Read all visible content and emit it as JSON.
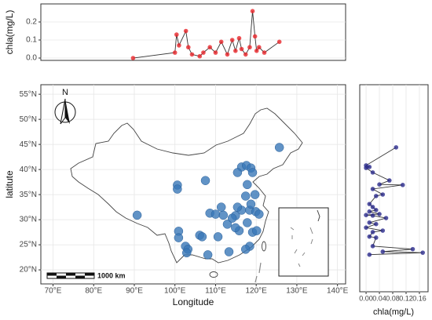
{
  "chart_data": [
    {
      "type": "line",
      "ylabel": "chla(mg/L)",
      "color": "#e8262a",
      "x": [
        89.7,
        100.0,
        100.4,
        101.0,
        102.7,
        103.3,
        104.2,
        106.1,
        107.0,
        108.6,
        110.0,
        111.4,
        112.9,
        114.1,
        114.9,
        115.8,
        116.4,
        117.4,
        118.4,
        119.1,
        119.7,
        120.1,
        120.7,
        122.0,
        125.7
      ],
      "values": [
        0.0,
        0.03,
        0.13,
        0.07,
        0.15,
        0.06,
        0.02,
        0.01,
        0.03,
        0.06,
        0.03,
        0.09,
        0.02,
        0.1,
        0.04,
        0.11,
        0.05,
        0.02,
        0.06,
        0.26,
        0.12,
        0.04,
        0.06,
        0.03,
        0.09
      ],
      "xlim": [
        67,
        142
      ],
      "ylim": [
        -0.013,
        0.3
      ],
      "yticks": [
        {
          "value": 0,
          "label": "0.0"
        },
        0.1,
        0.2
      ],
      "grid": true
    },
    {
      "type": "scatter",
      "xlabel": "Longitude",
      "ylabel": "latitute",
      "color": "#3a78b8",
      "north_arrow_label": "N",
      "scale_bar_label": "1000 km",
      "x": [
        125.7,
        90.7,
        100.6,
        100.6,
        107.5,
        116.4,
        117.6,
        118.7,
        115.4,
        119.1,
        117.4,
        100.9,
        100.9,
        102.6,
        103.2,
        106.1,
        106.7,
        108.6,
        110.0,
        111.9,
        111.4,
        112.9,
        114.9,
        116.4,
        118.4,
        119.9,
        120.7,
        118.7,
        117.8,
        115.8,
        119.1,
        120.1,
        118.4,
        117.4,
        113.3,
        108.1,
        102.9,
        114.9,
        114.1,
        119.7,
        117.8,
        110.6,
        115.4
      ],
      "y": [
        44.4,
        30.9,
        36.9,
        36.1,
        37.8,
        40.5,
        40.8,
        40.3,
        39.4,
        39.4,
        34.7,
        27.7,
        26.4,
        24.7,
        24.1,
        26.9,
        26.6,
        31.3,
        31.1,
        30.9,
        32.5,
        29.1,
        30.8,
        31.9,
        31.9,
        31.6,
        31.1,
        33.1,
        29.4,
        27.8,
        27.5,
        27.8,
        24.7,
        24.1,
        23.6,
        23.0,
        23.4,
        28.4,
        30.3,
        35.0,
        37.0,
        26.6,
        32.5
      ],
      "xlim": [
        67,
        142
      ],
      "ylim": [
        17.2,
        56.9
      ],
      "xticks": [
        {
          "value": 70,
          "label": "70°E"
        },
        {
          "value": 80,
          "label": "80°E"
        },
        {
          "value": 90,
          "label": "90°E"
        },
        {
          "value": 100,
          "label": "100°E"
        },
        {
          "value": 110,
          "label": "110°E"
        },
        {
          "value": 120,
          "label": "120°E"
        },
        {
          "value": 130,
          "label": "130°E"
        },
        {
          "value": 140,
          "label": "140°E"
        }
      ],
      "yticks": [
        {
          "value": 20,
          "label": "20°N"
        },
        {
          "value": 25,
          "label": "25°N"
        },
        {
          "value": 30,
          "label": "30°N"
        },
        {
          "value": 35,
          "label": "35°N"
        },
        {
          "value": 40,
          "label": "40°N"
        },
        {
          "value": 45,
          "label": "45°N"
        },
        {
          "value": 50,
          "label": "50°N"
        },
        {
          "value": 55,
          "label": "55°N"
        }
      ],
      "grid": true
    },
    {
      "type": "line",
      "orientation": "horizontal",
      "xlabel": "chla(mg/L)",
      "color": "#2b2b8c",
      "y": [
        23.0,
        23.4,
        23.6,
        24.1,
        24.7,
        26.4,
        26.6,
        27.5,
        27.8,
        28.4,
        29.1,
        29.4,
        30.3,
        30.8,
        30.9,
        31.1,
        31.6,
        31.9,
        32.5,
        33.1,
        34.7,
        35.0,
        36.1,
        36.9,
        37.0,
        37.8,
        39.4,
        40.3,
        40.5,
        40.8,
        44.4
      ],
      "values": [
        0.01,
        0.17,
        0.05,
        0.14,
        0.02,
        0.03,
        0.01,
        0.02,
        0.05,
        0.0,
        0.03,
        0.01,
        0.06,
        0.02,
        0.0,
        0.04,
        0.01,
        0.03,
        0.02,
        0.01,
        0.03,
        0.05,
        0.02,
        0.11,
        0.04,
        0.07,
        0.02,
        0.0,
        0.01,
        0.0,
        0.09
      ],
      "xlim": [
        -0.019,
        0.186
      ],
      "ylim": [
        15.6,
        56.9
      ],
      "xticks": [
        {
          "value": 0,
          "label": "0.00"
        },
        {
          "value": 0.04,
          "label": "0.04"
        },
        {
          "value": 0.08,
          "label": "0.08"
        },
        {
          "value": 0.12,
          "label": "0.12"
        },
        {
          "value": 0.16,
          "label": "0.16"
        }
      ],
      "grid": true
    }
  ]
}
